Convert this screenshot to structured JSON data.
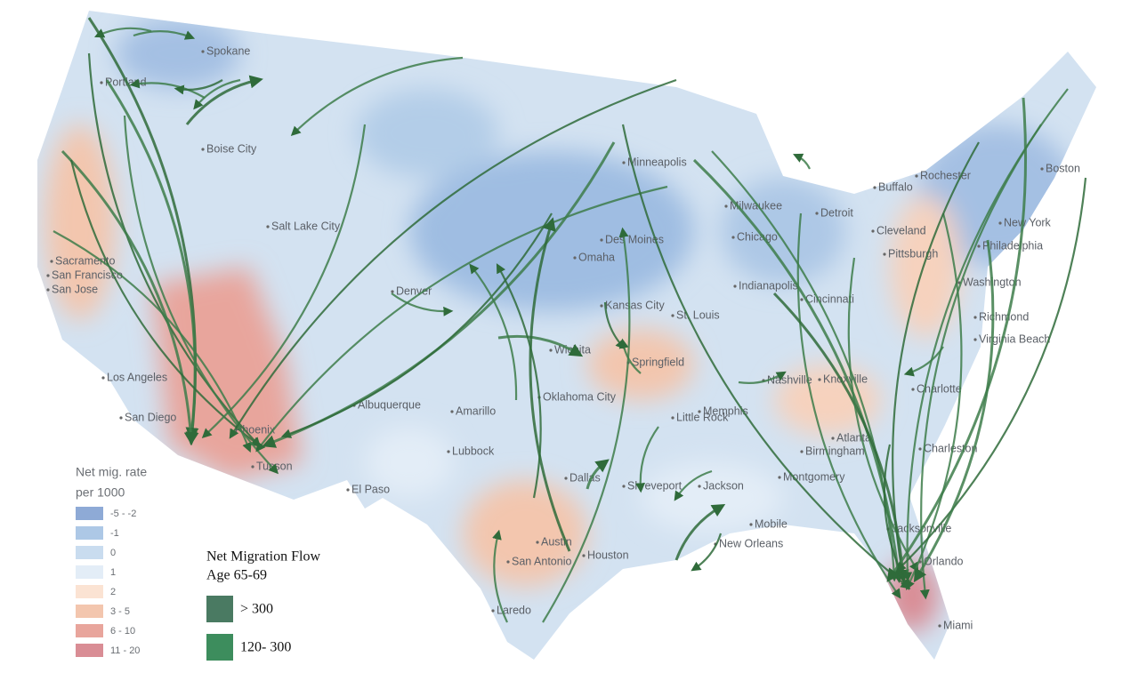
{
  "cities": [
    "Spokane",
    "Portland",
    "Boise City",
    "Salt Lake City",
    "Sacramento",
    "San Francisco",
    "San Jose",
    "Los Angeles",
    "San Diego",
    "Phoenix",
    "Tucson",
    "El Paso",
    "Albuquerque",
    "Denver",
    "Amarillo",
    "Lubbock",
    "Oklahoma City",
    "Wichita",
    "Kansas City",
    "Omaha",
    "Des Moines",
    "Minneapolis",
    "Milwaukee",
    "Chicago",
    "Detroit",
    "Cleveland",
    "Pittsburgh",
    "Buffalo",
    "Rochester",
    "Boston",
    "New York",
    "Philadelphia",
    "Washington",
    "Richmond",
    "Virginia Beach",
    "Indianapolis",
    "Cincinnati",
    "St. Louis",
    "Springfield",
    "Memphis",
    "Little Rock",
    "Nashville",
    "Knoxville",
    "Charlotte",
    "Charleston",
    "Birmingham",
    "Montgomery",
    "Atlanta",
    "Jackson",
    "Shreveport",
    "Dallas",
    "Austin",
    "San Antonio",
    "Houston",
    "Laredo",
    "New Orleans",
    "Mobile",
    "Jacksonville",
    "Orlando",
    "Miami"
  ],
  "legend_rate": {
    "title": "Net mig. rate",
    "subtitle": "per 1000",
    "items": [
      {
        "label": "-5 - -2",
        "color": "#8eaad6"
      },
      {
        "label": "-1",
        "color": "#adc8e6"
      },
      {
        "label": "0",
        "color": "#c9dcef"
      },
      {
        "label": "1",
        "color": "#e3edf7"
      },
      {
        "label": "2",
        "color": "#fbe3d3"
      },
      {
        "label": "3 - 5",
        "color": "#f3c6ae"
      },
      {
        "label": "6 - 10",
        "color": "#e8a59c"
      },
      {
        "label": "11 - 20",
        "color": "#d98d95"
      }
    ]
  },
  "legend_flow": {
    "title": "Net Migration Flow",
    "subtitle": "Age 65-69",
    "items": [
      {
        "label": "> 300",
        "color": "#4a7a62"
      },
      {
        "label": "120- 300",
        "color": "#3d8d5d"
      }
    ]
  }
}
